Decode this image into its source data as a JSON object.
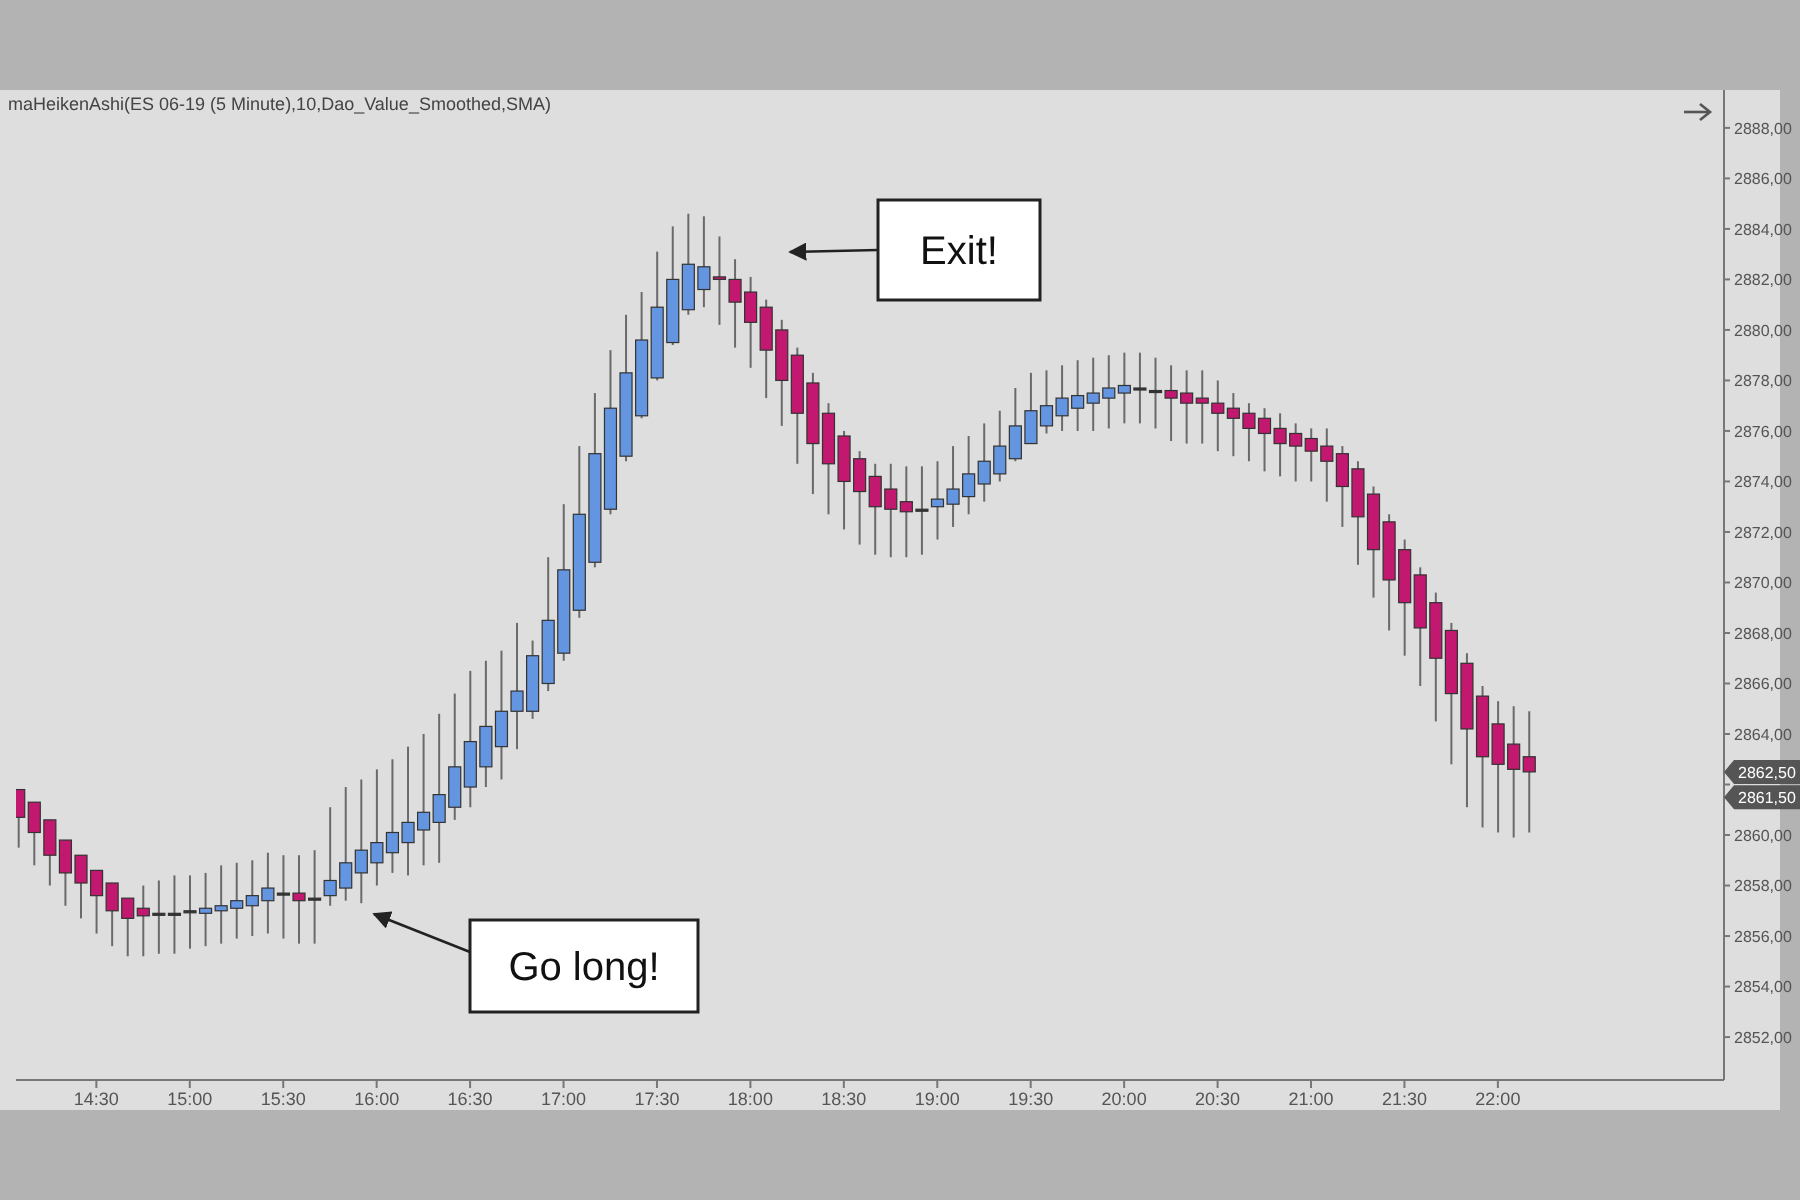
{
  "chart_data": {
    "type": "candlestick",
    "title": "maHeikenAshi(ES 06-19 (5 Minute),10,Dao_Value_Smoothed,SMA)",
    "x": [
      14.0833,
      14.1667,
      14.25,
      14.3333,
      14.4167,
      14.5,
      14.5833,
      14.6667,
      14.75,
      14.8333,
      14.9167,
      15,
      15.0833,
      15.1667,
      15.25,
      15.3333,
      15.4167,
      15.5,
      15.5833,
      15.6667,
      15.75,
      15.8333,
      15.9167,
      16,
      16.0833,
      16.1667,
      16.25,
      16.3333,
      16.4167,
      16.5,
      16.5833,
      16.6667,
      16.75,
      16.8333,
      16.9167,
      17,
      17.0833,
      17.1667,
      17.25,
      17.3333,
      17.4167,
      17.5,
      17.5833,
      17.6667,
      17.75,
      17.8333,
      17.9167,
      18,
      18.0833,
      18.1667,
      18.25,
      18.3333,
      18.4167,
      18.5,
      18.5833,
      18.6667,
      18.75,
      18.8333,
      18.9167,
      19,
      19.0833,
      19.1667,
      19.25,
      19.3333,
      19.4167,
      19.5,
      19.5833,
      19.6667,
      19.75,
      19.8333,
      19.9167,
      20,
      20.0833,
      20.1667,
      20.25,
      20.3333,
      20.4167,
      20.5,
      20.5833,
      20.6667,
      20.75,
      20.8333,
      20.9167,
      21,
      21.0833,
      21.1667,
      21.25,
      21.3333,
      21.4167,
      21.5,
      21.5833,
      21.6667,
      21.75,
      21.8333,
      21.9167,
      22,
      22.0833,
      22.1667
    ],
    "ohlc": [
      [
        2861.8,
        2861.8,
        2859.5,
        2860.7
      ],
      [
        2861.3,
        2861.3,
        2858.8,
        2860.1
      ],
      [
        2860.6,
        2860.6,
        2858.0,
        2859.2
      ],
      [
        2859.8,
        2859.8,
        2857.2,
        2858.5
      ],
      [
        2859.2,
        2859.2,
        2856.7,
        2858.1
      ],
      [
        2858.6,
        2858.6,
        2856.1,
        2857.6
      ],
      [
        2858.1,
        2858.1,
        2855.6,
        2857.0
      ],
      [
        2857.5,
        2857.5,
        2855.2,
        2856.7
      ],
      [
        2857.1,
        2858.0,
        2855.2,
        2856.8
      ],
      [
        2856.9,
        2858.2,
        2855.3,
        2856.9
      ],
      [
        2856.9,
        2858.4,
        2855.3,
        2856.9
      ],
      [
        2857.0,
        2858.4,
        2855.5,
        2857.0
      ],
      [
        2856.9,
        2858.5,
        2855.6,
        2857.1
      ],
      [
        2857.0,
        2858.8,
        2855.7,
        2857.2
      ],
      [
        2857.1,
        2858.9,
        2855.9,
        2857.4
      ],
      [
        2857.2,
        2859.0,
        2856.0,
        2857.6
      ],
      [
        2857.4,
        2859.3,
        2856.1,
        2857.9
      ],
      [
        2857.7,
        2859.2,
        2855.9,
        2857.7
      ],
      [
        2857.7,
        2859.2,
        2855.7,
        2857.4
      ],
      [
        2857.5,
        2859.4,
        2855.7,
        2857.5
      ],
      [
        2857.6,
        2861.1,
        2857.2,
        2858.2
      ],
      [
        2857.9,
        2861.9,
        2857.4,
        2858.9
      ],
      [
        2858.5,
        2862.2,
        2857.3,
        2859.4
      ],
      [
        2858.9,
        2862.6,
        2858.0,
        2859.7
      ],
      [
        2859.3,
        2863.0,
        2858.5,
        2860.1
      ],
      [
        2859.7,
        2863.5,
        2858.4,
        2860.5
      ],
      [
        2860.2,
        2864.0,
        2858.8,
        2860.9
      ],
      [
        2860.5,
        2864.8,
        2858.9,
        2861.6
      ],
      [
        2861.1,
        2865.6,
        2860.6,
        2862.7
      ],
      [
        2861.9,
        2866.5,
        2861.1,
        2863.7
      ],
      [
        2862.7,
        2866.9,
        2861.9,
        2864.3
      ],
      [
        2863.5,
        2867.3,
        2862.2,
        2864.9
      ],
      [
        2864.9,
        2868.4,
        2863.4,
        2865.7
      ],
      [
        2864.9,
        2867.7,
        2864.6,
        2867.1
      ],
      [
        2866.0,
        2871.0,
        2865.7,
        2868.5
      ],
      [
        2867.2,
        2873.1,
        2866.9,
        2870.5
      ],
      [
        2868.9,
        2875.4,
        2868.6,
        2872.7
      ],
      [
        2870.8,
        2877.5,
        2870.6,
        2875.1
      ],
      [
        2872.9,
        2879.2,
        2872.7,
        2876.9
      ],
      [
        2875.0,
        2880.6,
        2874.8,
        2878.3
      ],
      [
        2876.6,
        2881.5,
        2876.5,
        2879.6
      ],
      [
        2878.1,
        2883.1,
        2878.0,
        2880.9
      ],
      [
        2879.5,
        2884.1,
        2879.4,
        2882.0
      ],
      [
        2880.8,
        2884.6,
        2880.6,
        2882.6
      ],
      [
        2881.6,
        2884.5,
        2880.9,
        2882.5
      ],
      [
        2882.1,
        2883.7,
        2880.2,
        2882.0
      ],
      [
        2882.0,
        2882.8,
        2879.3,
        2881.1
      ],
      [
        2881.5,
        2882.1,
        2878.5,
        2880.3
      ],
      [
        2880.9,
        2881.2,
        2877.3,
        2879.2
      ],
      [
        2880.0,
        2880.4,
        2876.2,
        2878.0
      ],
      [
        2879.0,
        2879.3,
        2874.7,
        2876.7
      ],
      [
        2877.9,
        2878.3,
        2873.5,
        2875.5
      ],
      [
        2876.7,
        2877.1,
        2872.7,
        2874.7
      ],
      [
        2875.8,
        2876.0,
        2872.1,
        2874.0
      ],
      [
        2874.9,
        2875.2,
        2871.5,
        2873.6
      ],
      [
        2874.2,
        2874.7,
        2871.1,
        2873.0
      ],
      [
        2873.7,
        2874.7,
        2871.0,
        2872.9
      ],
      [
        2873.2,
        2874.6,
        2871.0,
        2872.8
      ],
      [
        2872.9,
        2874.6,
        2871.1,
        2872.9
      ],
      [
        2873.0,
        2874.8,
        2871.7,
        2873.3
      ],
      [
        2873.1,
        2875.4,
        2872.2,
        2873.7
      ],
      [
        2873.4,
        2875.8,
        2872.7,
        2874.3
      ],
      [
        2873.9,
        2876.3,
        2873.2,
        2874.8
      ],
      [
        2874.3,
        2876.8,
        2874.0,
        2875.4
      ],
      [
        2874.9,
        2877.7,
        2874.8,
        2876.2
      ],
      [
        2875.5,
        2878.3,
        2875.5,
        2876.8
      ],
      [
        2876.2,
        2878.4,
        2875.9,
        2877.0
      ],
      [
        2876.6,
        2878.6,
        2876.0,
        2877.3
      ],
      [
        2876.9,
        2878.8,
        2876.0,
        2877.4
      ],
      [
        2877.1,
        2878.9,
        2876.0,
        2877.5
      ],
      [
        2877.3,
        2879.0,
        2876.1,
        2877.7
      ],
      [
        2877.5,
        2879.1,
        2876.3,
        2877.8
      ],
      [
        2877.7,
        2879.1,
        2876.3,
        2877.7
      ],
      [
        2877.6,
        2878.9,
        2876.1,
        2877.6
      ],
      [
        2877.6,
        2878.6,
        2875.6,
        2877.3
      ],
      [
        2877.5,
        2878.4,
        2875.5,
        2877.1
      ],
      [
        2877.3,
        2878.4,
        2875.5,
        2877.1
      ],
      [
        2877.1,
        2878.0,
        2875.2,
        2876.7
      ],
      [
        2876.9,
        2877.5,
        2875.0,
        2876.5
      ],
      [
        2876.7,
        2877.1,
        2874.8,
        2876.1
      ],
      [
        2876.5,
        2876.9,
        2874.4,
        2875.9
      ],
      [
        2876.1,
        2876.7,
        2874.2,
        2875.5
      ],
      [
        2875.9,
        2876.3,
        2874.0,
        2875.4
      ],
      [
        2875.7,
        2876.1,
        2874.0,
        2875.2
      ],
      [
        2875.4,
        2876.1,
        2873.2,
        2874.8
      ],
      [
        2875.1,
        2875.4,
        2872.2,
        2873.8
      ],
      [
        2874.5,
        2874.8,
        2870.7,
        2872.6
      ],
      [
        2873.5,
        2873.8,
        2869.4,
        2871.3
      ],
      [
        2872.4,
        2872.7,
        2868.1,
        2870.1
      ],
      [
        2871.3,
        2871.7,
        2867.1,
        2869.2
      ],
      [
        2870.3,
        2870.6,
        2865.9,
        2868.2
      ],
      [
        2869.2,
        2869.6,
        2864.5,
        2867.0
      ],
      [
        2868.1,
        2868.4,
        2862.8,
        2865.6
      ],
      [
        2866.8,
        2867.2,
        2861.1,
        2864.2
      ],
      [
        2865.5,
        2865.9,
        2860.3,
        2863.1
      ],
      [
        2864.4,
        2865.3,
        2860.1,
        2862.8
      ],
      [
        2863.6,
        2865.1,
        2859.9,
        2862.6
      ],
      [
        2863.1,
        2864.9,
        2860.1,
        2862.5
      ]
    ],
    "colors": [
      "#c2186f",
      "#c2186f",
      "#c2186f",
      "#c2186f",
      "#c2186f",
      "#c2186f",
      "#c2186f",
      "#c2186f",
      "#c2186f",
      "#333333",
      "#333333",
      "#333333",
      "#6495e0",
      "#6495e0",
      "#6495e0",
      "#6495e0",
      "#6495e0",
      "#333333",
      "#c2186f",
      "#333333",
      "#6495e0",
      "#6495e0",
      "#6495e0",
      "#6495e0",
      "#6495e0",
      "#6495e0",
      "#6495e0",
      "#6495e0",
      "#6495e0",
      "#6495e0",
      "#6495e0",
      "#6495e0",
      "#6495e0",
      "#6495e0",
      "#6495e0",
      "#6495e0",
      "#6495e0",
      "#6495e0",
      "#6495e0",
      "#6495e0",
      "#6495e0",
      "#6495e0",
      "#6495e0",
      "#6495e0",
      "#6495e0",
      "#c2186f",
      "#c2186f",
      "#c2186f",
      "#c2186f",
      "#c2186f",
      "#c2186f",
      "#c2186f",
      "#c2186f",
      "#c2186f",
      "#c2186f",
      "#c2186f",
      "#c2186f",
      "#c2186f",
      "#333333",
      "#6495e0",
      "#6495e0",
      "#6495e0",
      "#6495e0",
      "#6495e0",
      "#6495e0",
      "#6495e0",
      "#6495e0",
      "#6495e0",
      "#6495e0",
      "#6495e0",
      "#6495e0",
      "#6495e0",
      "#333333",
      "#333333",
      "#c2186f",
      "#c2186f",
      "#c2186f",
      "#c2186f",
      "#c2186f",
      "#c2186f",
      "#c2186f",
      "#c2186f",
      "#c2186f",
      "#c2186f",
      "#c2186f",
      "#c2186f",
      "#c2186f",
      "#c2186f",
      "#c2186f",
      "#c2186f",
      "#c2186f",
      "#c2186f",
      "#c2186f",
      "#c2186f",
      "#c2186f",
      "#c2186f",
      "#c2186f",
      "#c2186f"
    ],
    "xlim": [
      14.07,
      23.21
    ],
    "xticks": [
      {
        "value": 14.5,
        "label": "14:30"
      },
      {
        "value": 15,
        "label": "15:00"
      },
      {
        "value": 15.5,
        "label": "15:30"
      },
      {
        "value": 16,
        "label": "16:00"
      },
      {
        "value": 16.5,
        "label": "16:30"
      },
      {
        "value": 17,
        "label": "17:00"
      },
      {
        "value": 17.5,
        "label": "17:30"
      },
      {
        "value": 18,
        "label": "18:00"
      },
      {
        "value": 18.5,
        "label": "18:30"
      },
      {
        "value": 19,
        "label": "19:00"
      },
      {
        "value": 19.5,
        "label": "19:30"
      },
      {
        "value": 20,
        "label": "20:00"
      },
      {
        "value": 20.5,
        "label": "20:30"
      },
      {
        "value": 21,
        "label": "21:00"
      },
      {
        "value": 21.5,
        "label": "21:30"
      },
      {
        "value": 22,
        "label": "22:00"
      }
    ],
    "ylim": [
      2850.3,
      2889.5
    ],
    "yticks": [
      {
        "value": 2852,
        "label": "2852,00"
      },
      {
        "value": 2854,
        "label": "2854,00"
      },
      {
        "value": 2856,
        "label": "2856,00"
      },
      {
        "value": 2858,
        "label": "2858,00"
      },
      {
        "value": 2860,
        "label": "2860,00"
      },
      {
        "value": 2862,
        "label": null
      },
      {
        "value": 2864,
        "label": "2864,00"
      },
      {
        "value": 2866,
        "label": "2866,00"
      },
      {
        "value": 2868,
        "label": "2868,00"
      },
      {
        "value": 2870,
        "label": "2870,00"
      },
      {
        "value": 2872,
        "label": "2872,00"
      },
      {
        "value": 2874,
        "label": "2874,00"
      },
      {
        "value": 2876,
        "label": "2876,00"
      },
      {
        "value": 2878,
        "label": "2878,00"
      },
      {
        "value": 2880,
        "label": "2880,00"
      },
      {
        "value": 2882,
        "label": "2882,00"
      },
      {
        "value": 2884,
        "label": "2884,00"
      },
      {
        "value": 2886,
        "label": "2886,00"
      },
      {
        "value": 2888,
        "label": "2888,00"
      }
    ],
    "annotations": [
      "Exit!",
      "Go long!",
      {
        "text": "2862,50",
        "y": 2862.5
      },
      {
        "text": "2861,50",
        "y": 2861.5
      }
    ]
  }
}
